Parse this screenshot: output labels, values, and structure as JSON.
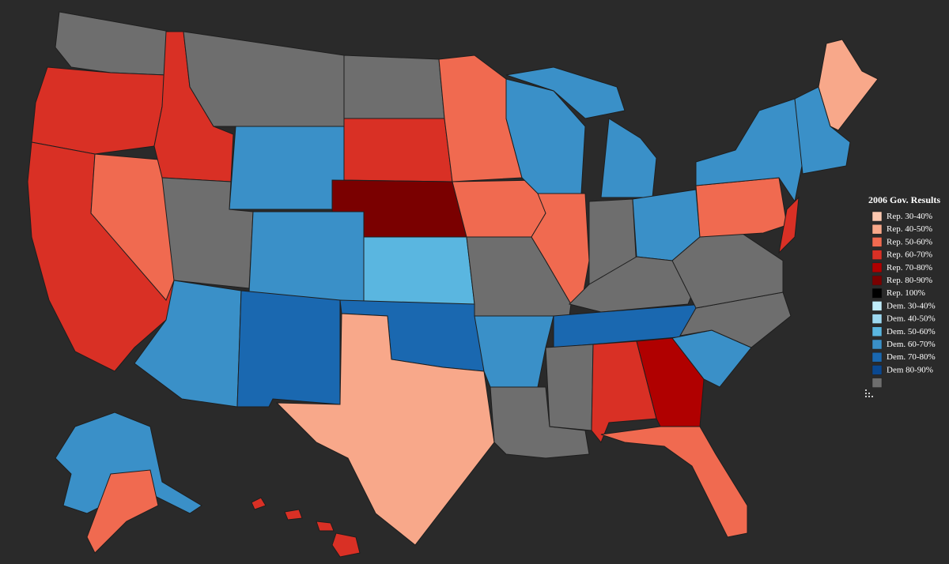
{
  "legend": {
    "title": "2006 Gov. Results",
    "items": [
      {
        "label": "Rep. 30-40%",
        "color": "#fcc8b0"
      },
      {
        "label": "Rep. 40-50%",
        "color": "#f8a88a"
      },
      {
        "label": "Rep. 50-60%",
        "color": "#f06a50"
      },
      {
        "label": "Rep. 60-70%",
        "color": "#d93025"
      },
      {
        "label": "Rep. 70-80%",
        "color": "#b00000"
      },
      {
        "label": "Rep. 80-90%",
        "color": "#7a0000"
      },
      {
        "label": "Rep. 100%",
        "color": "#000000"
      },
      {
        "label": "Dem. 30-40%",
        "color": "#c0ecfa"
      },
      {
        "label": "Dem. 40-50%",
        "color": "#9dd8f0"
      },
      {
        "label": "Dem. 50-60%",
        "color": "#5ab6e0"
      },
      {
        "label": "Dem. 60-70%",
        "color": "#3a90c8"
      },
      {
        "label": "Dem. 70-80%",
        "color": "#1a68b0"
      },
      {
        "label": "Dem 80-90%",
        "color": "#0a4890"
      },
      {
        "label": null,
        "color": "#6e6e6e"
      }
    ]
  }
}
